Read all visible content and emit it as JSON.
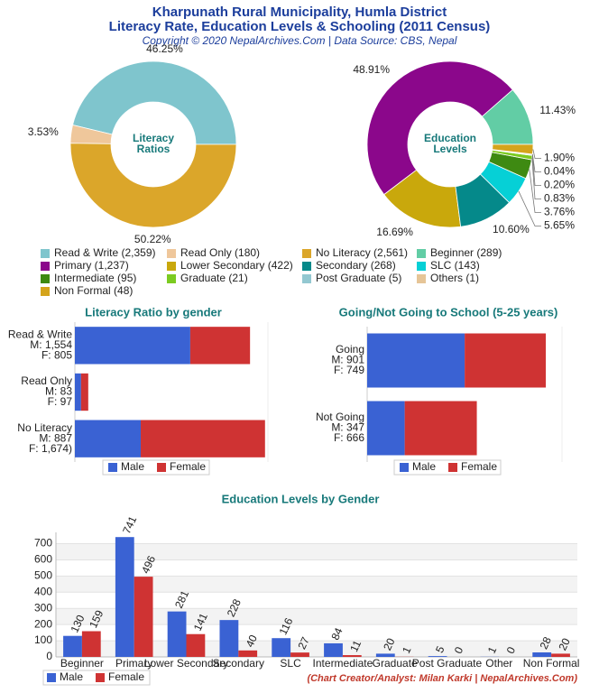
{
  "header": {
    "title": "Kharpunath Rural Municipality, Humla District",
    "subtitle": "Literacy Rate, Education Levels & Schooling (2011 Census)",
    "copyright": "Copyright © 2020 NepalArchives.Com | Data Source: CBS, Nepal"
  },
  "chart_data": [
    {
      "type": "donut",
      "center_label": [
        "Literacy",
        "Ratios"
      ],
      "categories": [
        "Read & Write (2,359)",
        "Read Only (180)",
        "No Literacy (2,561)"
      ],
      "values": [
        46.25,
        3.53,
        50.22
      ],
      "value_labels": [
        "46.25%",
        "3.53%",
        "50.22%"
      ],
      "colors": [
        "#7fc5cd",
        "#efc79b",
        "#dba62a"
      ]
    },
    {
      "type": "donut",
      "center_label": [
        "Education",
        "Levels"
      ],
      "categories": [
        "Beginner (289)",
        "Primary (1,237)",
        "Lower Secondary (422)",
        "Secondary (268)",
        "SLC (143)",
        "Intermediate (95)",
        "Graduate (21)",
        "Post Graduate (5)",
        "Others (1)",
        "Non Formal (48)"
      ],
      "values": [
        11.43,
        48.91,
        16.69,
        10.6,
        5.65,
        3.76,
        0.83,
        0.2,
        0.04,
        1.9
      ],
      "value_labels": [
        "11.43%",
        "48.91%",
        "16.69%",
        "10.60%",
        "5.65%",
        "3.76%",
        "0.83%",
        "0.20%",
        "0.04%",
        "1.90%"
      ],
      "colors": [
        "#62cda5",
        "#8b078b",
        "#c9a80c",
        "#05898a",
        "#06d0d6",
        "#3e8a12",
        "#7ccb21",
        "#93c8d1",
        "#e6c597",
        "#d4a41c"
      ]
    },
    {
      "type": "hbar",
      "title": "Literacy Ratio by gender",
      "stacked": true,
      "categories": [
        [
          "Read & Write",
          "M: 1,554",
          "F: 805"
        ],
        [
          "Read Only",
          "M: 83",
          "F: 97"
        ],
        [
          "No Literacy",
          "M: 887",
          "F: 1,674)"
        ]
      ],
      "series": [
        {
          "name": "Male",
          "color": "#3a62d3",
          "values": [
            1554,
            83,
            887
          ]
        },
        {
          "name": "Female",
          "color": "#cf3333",
          "values": [
            805,
            97,
            1674
          ]
        }
      ],
      "xlim": [
        0,
        2600
      ],
      "legend": "bottom"
    },
    {
      "type": "hbar",
      "title": "Going/Not Going to School (5-25 years)",
      "stacked": true,
      "categories": [
        [
          "Going",
          "M: 901",
          "F: 749"
        ],
        [
          "Not Going",
          "M: 347",
          "F: 666"
        ]
      ],
      "series": [
        {
          "name": "Male",
          "color": "#3a62d3",
          "values": [
            901,
            347
          ]
        },
        {
          "name": "Female",
          "color": "#cf3333",
          "values": [
            749,
            666
          ]
        }
      ],
      "xlim": [
        0,
        1800
      ],
      "legend": "bottom"
    },
    {
      "type": "bar",
      "title": "Education Levels by Gender",
      "categories": [
        "Beginner",
        "Primary",
        "Lower Secondary",
        "Secondary",
        "SLC",
        "Intermediate",
        "Graduate",
        "Post Graduate",
        "Other",
        "Non Formal"
      ],
      "series": [
        {
          "name": "Male",
          "color": "#3a62d3",
          "values": [
            130,
            741,
            281,
            228,
            116,
            84,
            20,
            5,
            1,
            28
          ]
        },
        {
          "name": "Female",
          "color": "#cf3333",
          "values": [
            159,
            496,
            141,
            40,
            27,
            11,
            1,
            0,
            0,
            20
          ]
        }
      ],
      "ylim": [
        0,
        770
      ],
      "yticks": [
        0,
        100,
        200,
        300,
        400,
        500,
        600,
        700
      ],
      "grid": true,
      "data_labels": true,
      "legend": "bottom-left"
    }
  ],
  "footer": "(Chart Creator/Analyst: Milan Karki | NepalArchives.Com)"
}
